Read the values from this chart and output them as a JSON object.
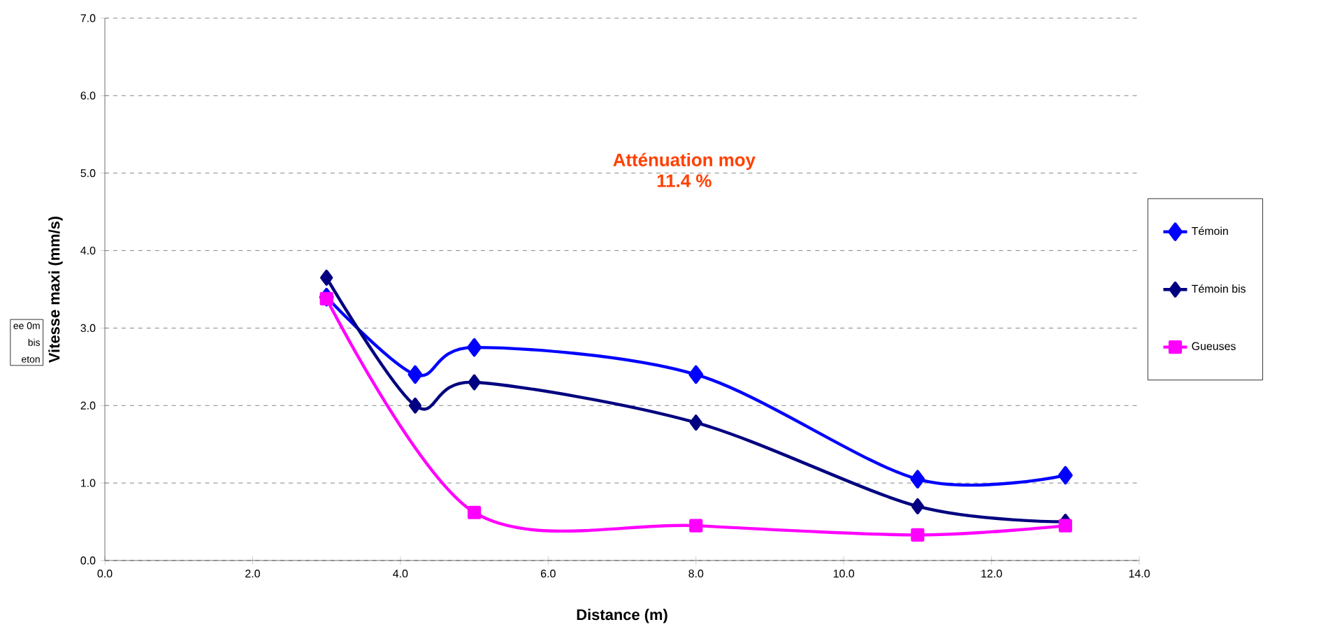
{
  "chart_data": {
    "type": "line",
    "xlabel": "Distance (m)",
    "ylabel": "Vitesse maxi (mm/s)",
    "x": [
      3,
      4.2,
      5,
      8,
      11,
      13
    ],
    "series": [
      {
        "name": "Témoin",
        "color": "#0000ff",
        "marker": "diamond",
        "values": [
          3.4,
          2.4,
          2.75,
          2.4,
          1.05,
          1.1
        ]
      },
      {
        "name": "Témoin bis",
        "color": "#000080",
        "marker": "diamond",
        "values": [
          3.65,
          2.0,
          2.3,
          1.78,
          0.7,
          0.5
        ]
      },
      {
        "name": "Gueuses",
        "color": "#ff00ff",
        "marker": "square",
        "values": [
          3.38,
          null,
          0.62,
          0.45,
          0.33,
          0.45
        ]
      }
    ],
    "xlim": [
      0,
      14
    ],
    "ylim": [
      0,
      7
    ],
    "xticks": [
      {
        "value": 0,
        "label": "0.0"
      },
      {
        "value": 2,
        "label": "2.0"
      },
      {
        "value": 4,
        "label": "4.0"
      },
      {
        "value": 6,
        "label": "6.0"
      },
      {
        "value": 8,
        "label": "8.0"
      },
      {
        "value": 10,
        "label": "10.0"
      },
      {
        "value": 12,
        "label": "12.0"
      },
      {
        "value": 14,
        "label": "14.0"
      }
    ],
    "yticks": [
      {
        "value": 0,
        "label": "0.0"
      },
      {
        "value": 1,
        "label": "1.0"
      },
      {
        "value": 2,
        "label": "2.0"
      },
      {
        "value": 3,
        "label": "3.0"
      },
      {
        "value": 4,
        "label": "4.0"
      },
      {
        "value": 5,
        "label": "5.0"
      },
      {
        "value": 6,
        "label": "6.0"
      },
      {
        "value": 7,
        "label": "7.0"
      }
    ],
    "grid": "y",
    "legend": "right",
    "line_style": "solid",
    "annotations": [
      "Atténuation moy",
      "11.4 %",
      "ee 0m",
      "bis",
      "eton"
    ]
  }
}
